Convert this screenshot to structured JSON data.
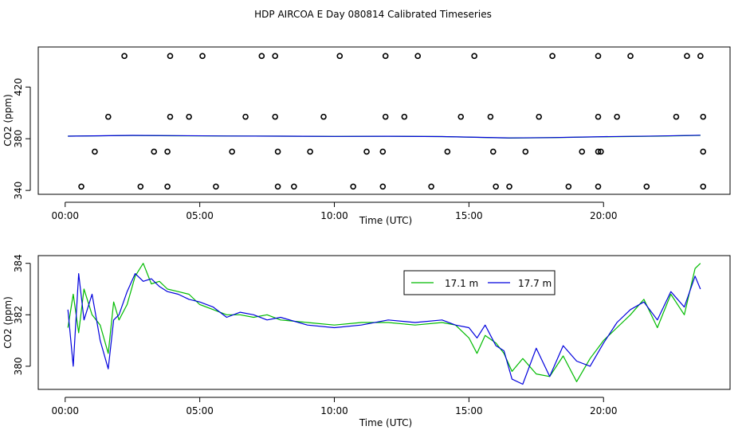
{
  "title": "HDP AIRCOA E  Day 080814  Calibrated Timeseries",
  "colors": {
    "series_1": "#00bb00",
    "series_2": "#0000dd"
  },
  "chart_data": [
    {
      "type": "scatter",
      "panel": "top",
      "xlabel": "Time (UTC)",
      "ylabel": "CO2 (ppm)",
      "xlim": [
        -1.0,
        24.7
      ],
      "ylim": [
        337,
        451
      ],
      "x_ticks": [
        0,
        5,
        10,
        15,
        20
      ],
      "x_tick_labels": [
        "00:00",
        "05:00",
        "10:00",
        "15:00",
        "20:00"
      ],
      "y_ticks": [
        340,
        380,
        420
      ],
      "y_tick_labels": [
        "340",
        "380",
        "420"
      ],
      "points": [
        {
          "x": 2.2,
          "y": 444
        },
        {
          "x": 3.9,
          "y": 444
        },
        {
          "x": 5.1,
          "y": 444
        },
        {
          "x": 7.3,
          "y": 444
        },
        {
          "x": 7.8,
          "y": 444
        },
        {
          "x": 10.2,
          "y": 444
        },
        {
          "x": 11.9,
          "y": 444
        },
        {
          "x": 13.1,
          "y": 444
        },
        {
          "x": 15.2,
          "y": 444
        },
        {
          "x": 18.1,
          "y": 444
        },
        {
          "x": 19.8,
          "y": 444
        },
        {
          "x": 21.0,
          "y": 444
        },
        {
          "x": 23.1,
          "y": 444
        },
        {
          "x": 23.6,
          "y": 444
        },
        {
          "x": 1.6,
          "y": 397
        },
        {
          "x": 3.9,
          "y": 397
        },
        {
          "x": 4.6,
          "y": 397
        },
        {
          "x": 6.7,
          "y": 397
        },
        {
          "x": 7.8,
          "y": 397
        },
        {
          "x": 9.6,
          "y": 397
        },
        {
          "x": 11.9,
          "y": 397
        },
        {
          "x": 12.6,
          "y": 397
        },
        {
          "x": 14.7,
          "y": 397
        },
        {
          "x": 15.8,
          "y": 397
        },
        {
          "x": 17.6,
          "y": 397
        },
        {
          "x": 19.8,
          "y": 397
        },
        {
          "x": 20.5,
          "y": 397
        },
        {
          "x": 22.7,
          "y": 397
        },
        {
          "x": 23.7,
          "y": 397
        },
        {
          "x": 1.1,
          "y": 370
        },
        {
          "x": 3.3,
          "y": 370
        },
        {
          "x": 3.8,
          "y": 370
        },
        {
          "x": 6.2,
          "y": 370
        },
        {
          "x": 7.9,
          "y": 370
        },
        {
          "x": 9.1,
          "y": 370
        },
        {
          "x": 11.2,
          "y": 370
        },
        {
          "x": 11.8,
          "y": 370
        },
        {
          "x": 14.2,
          "y": 370
        },
        {
          "x": 15.9,
          "y": 370
        },
        {
          "x": 17.1,
          "y": 370
        },
        {
          "x": 19.2,
          "y": 370
        },
        {
          "x": 19.8,
          "y": 370
        },
        {
          "x": 19.9,
          "y": 370
        },
        {
          "x": 23.7,
          "y": 370
        },
        {
          "x": 0.6,
          "y": 343
        },
        {
          "x": 2.8,
          "y": 343
        },
        {
          "x": 3.8,
          "y": 343
        },
        {
          "x": 5.6,
          "y": 343
        },
        {
          "x": 7.9,
          "y": 343
        },
        {
          "x": 8.5,
          "y": 343
        },
        {
          "x": 10.7,
          "y": 343
        },
        {
          "x": 11.8,
          "y": 343
        },
        {
          "x": 13.6,
          "y": 343
        },
        {
          "x": 16.0,
          "y": 343
        },
        {
          "x": 16.5,
          "y": 343
        },
        {
          "x": 18.7,
          "y": 343
        },
        {
          "x": 19.8,
          "y": 343
        },
        {
          "x": 21.6,
          "y": 343
        },
        {
          "x": 23.7,
          "y": 343
        }
      ],
      "series": [
        {
          "name": "17.1 m",
          "x": [
            0.1,
            2.5,
            4.0,
            6.0,
            8.0,
            10.0,
            12.0,
            14.0,
            16.5,
            18.0,
            20.0,
            22.0,
            23.6
          ],
          "values": [
            382,
            382.5,
            382.3,
            382.1,
            382,
            381.8,
            381.9,
            381.7,
            380.5,
            380.8,
            381.5,
            382,
            382.6
          ]
        },
        {
          "name": "17.7 m",
          "x": [
            0.1,
            2.5,
            4.0,
            6.0,
            8.0,
            10.0,
            12.0,
            14.0,
            16.5,
            18.0,
            20.0,
            22.0,
            23.6
          ],
          "values": [
            382,
            382.6,
            382.4,
            382.1,
            382,
            381.8,
            381.9,
            381.7,
            380.6,
            380.9,
            381.6,
            382.1,
            382.7
          ]
        }
      ]
    },
    {
      "type": "line",
      "panel": "bottom",
      "xlabel": "Time (UTC)",
      "ylabel": "CO2 (ppm)",
      "xlim": [
        -1.0,
        24.7
      ],
      "ylim": [
        379.1,
        384.3
      ],
      "x_ticks": [
        0,
        5,
        10,
        15,
        20
      ],
      "x_tick_labels": [
        "00:00",
        "05:00",
        "10:00",
        "15:00",
        "20:00"
      ],
      "y_ticks": [
        380,
        382,
        384
      ],
      "y_tick_labels": [
        "380",
        "382",
        "384"
      ],
      "legend_position": "top-right",
      "series": [
        {
          "name": "17.1 m",
          "x": [
            0.1,
            0.3,
            0.5,
            0.7,
            1.0,
            1.3,
            1.6,
            1.8,
            2.0,
            2.3,
            2.6,
            2.9,
            3.2,
            3.5,
            3.8,
            4.2,
            4.6,
            5.0,
            5.5,
            6.0,
            6.5,
            7.0,
            7.5,
            8.0,
            9.0,
            10.0,
            11.0,
            12.0,
            13.0,
            14.0,
            14.5,
            15.0,
            15.3,
            15.6,
            16.0,
            16.3,
            16.6,
            17.0,
            17.5,
            18.0,
            18.5,
            19.0,
            19.5,
            20.0,
            20.5,
            21.0,
            21.5,
            22.0,
            22.5,
            23.0,
            23.4,
            23.6
          ],
          "values": [
            381.5,
            382.8,
            381.3,
            383.0,
            382.0,
            381.6,
            380.5,
            382.5,
            381.8,
            382.4,
            383.5,
            384.0,
            383.2,
            383.3,
            383.0,
            382.9,
            382.8,
            382.4,
            382.2,
            382.0,
            382.0,
            381.9,
            382.0,
            381.8,
            381.7,
            381.6,
            381.7,
            381.7,
            381.6,
            381.7,
            381.6,
            381.1,
            380.5,
            381.2,
            380.9,
            380.5,
            379.8,
            380.3,
            379.7,
            379.6,
            380.4,
            379.4,
            380.3,
            381.0,
            381.5,
            382.0,
            382.6,
            381.5,
            382.8,
            382.0,
            383.8,
            384.0
          ]
        },
        {
          "name": "17.7 m",
          "x": [
            0.1,
            0.3,
            0.5,
            0.7,
            1.0,
            1.3,
            1.6,
            1.8,
            2.0,
            2.3,
            2.6,
            2.9,
            3.2,
            3.5,
            3.8,
            4.2,
            4.6,
            5.0,
            5.5,
            6.0,
            6.5,
            7.0,
            7.5,
            8.0,
            9.0,
            10.0,
            11.0,
            12.0,
            13.0,
            14.0,
            14.5,
            15.0,
            15.3,
            15.6,
            16.0,
            16.3,
            16.6,
            17.0,
            17.5,
            18.0,
            18.5,
            19.0,
            19.5,
            20.0,
            20.5,
            21.0,
            21.5,
            22.0,
            22.5,
            23.0,
            23.4,
            23.6
          ],
          "values": [
            382.2,
            380.0,
            383.6,
            381.8,
            382.8,
            381.0,
            379.9,
            381.8,
            382.0,
            382.9,
            383.6,
            383.3,
            383.4,
            383.1,
            382.9,
            382.8,
            382.6,
            382.5,
            382.3,
            381.9,
            382.1,
            382.0,
            381.8,
            381.9,
            381.6,
            381.5,
            381.6,
            381.8,
            381.7,
            381.8,
            381.6,
            381.5,
            381.1,
            381.6,
            380.8,
            380.6,
            379.5,
            379.3,
            380.7,
            379.6,
            380.8,
            380.2,
            380.0,
            380.9,
            381.7,
            382.2,
            382.5,
            381.8,
            382.9,
            382.3,
            383.5,
            383.0
          ]
        }
      ]
    }
  ]
}
